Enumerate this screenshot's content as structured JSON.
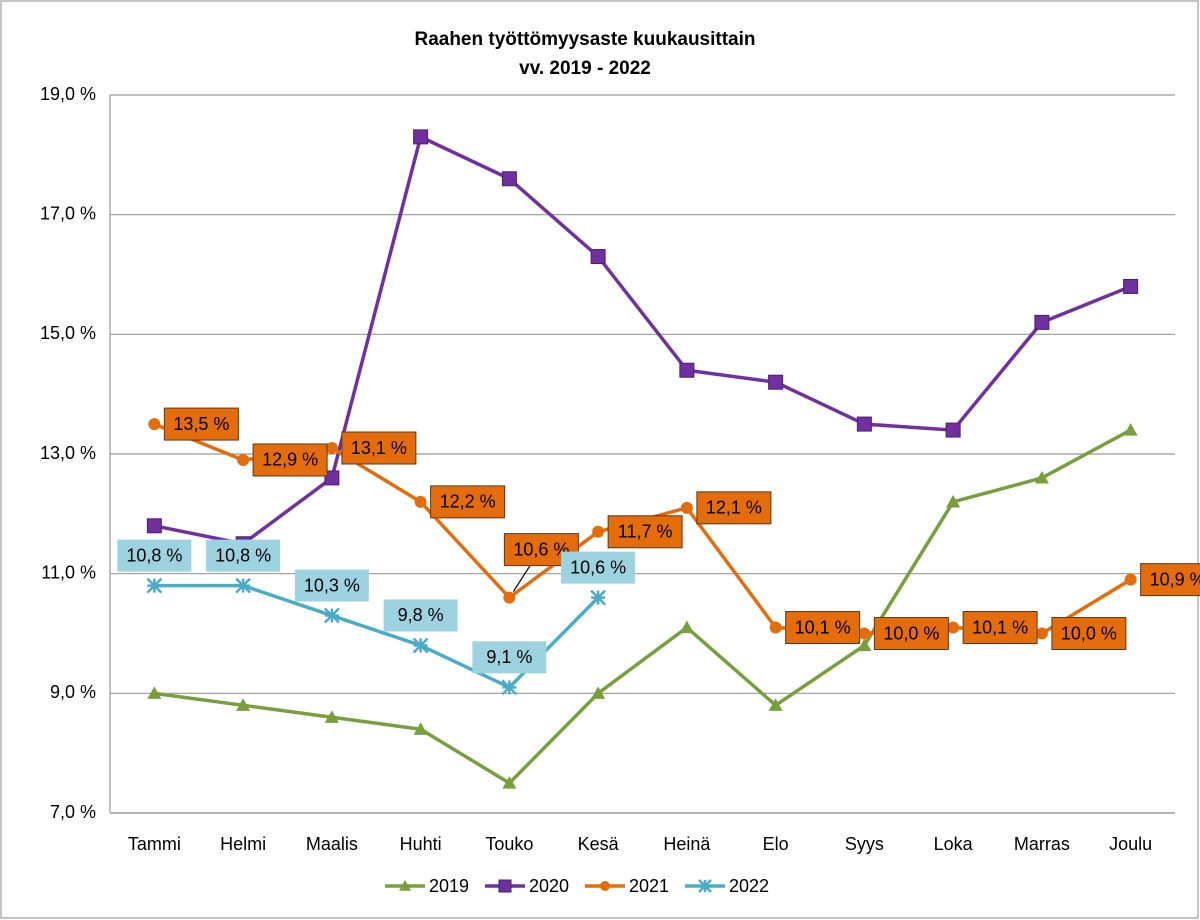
{
  "chart_data": {
    "type": "line",
    "title": "Raahen työttömyysaste kuukausittain",
    "subtitle": "vv. 2019 - 2022",
    "categories": [
      "Tammi",
      "Helmi",
      "Maalis",
      "Huhti",
      "Touko",
      "Kesä",
      "Heinä",
      "Elo",
      "Syys",
      "Loka",
      "Marras",
      "Joulu"
    ],
    "series": [
      {
        "name": "2019",
        "color": "#77a03c",
        "marker": "triangle",
        "values": [
          9.0,
          8.8,
          8.6,
          8.4,
          7.5,
          9.0,
          10.1,
          8.8,
          9.8,
          12.2,
          12.6,
          13.4
        ]
      },
      {
        "name": "2020",
        "color": "#7030a0",
        "marker": "square",
        "values": [
          11.8,
          11.5,
          12.6,
          18.3,
          17.6,
          16.3,
          14.4,
          14.2,
          13.5,
          13.4,
          15.2,
          15.8
        ]
      },
      {
        "name": "2021",
        "color": "#e46c0a",
        "marker": "circle",
        "label_fill": "#e46c0a",
        "values": [
          13.5,
          12.9,
          13.1,
          12.2,
          10.6,
          11.7,
          12.1,
          10.1,
          10.0,
          10.1,
          10.0,
          10.9
        ],
        "value_labels": [
          "13,5 %",
          "12,9 %",
          "13,1 %",
          "12,2 %",
          "10,6 %",
          "11,7 %",
          "12,1 %",
          "10,1 %",
          "10,0 %",
          "10,1 %",
          "10,0 %",
          "10,9 %"
        ]
      },
      {
        "name": "2022",
        "color": "#4bacc6",
        "marker": "asterisk",
        "label_fill": "#9dd3e0",
        "values": [
          10.8,
          10.8,
          10.3,
          9.8,
          9.1,
          10.6,
          null,
          null,
          null,
          null,
          null,
          null
        ],
        "value_labels": [
          "10,8 %",
          "10,8 %",
          "10,3 %",
          "9,8 %",
          "9,1 %",
          "10,6 %",
          null,
          null,
          null,
          null,
          null,
          null
        ]
      }
    ],
    "ylim": [
      7,
      19
    ],
    "yticks": [
      {
        "value": 7,
        "label": "7,0 %"
      },
      {
        "value": 9,
        "label": "9,0 %"
      },
      {
        "value": 11,
        "label": "11,0 %"
      },
      {
        "value": 13,
        "label": "13,0 %"
      },
      {
        "value": 15,
        "label": "15,0 %"
      },
      {
        "value": 17,
        "label": "17,0 %"
      },
      {
        "value": 19,
        "label": "19,0 %"
      }
    ],
    "grid": true,
    "legend": "bottom"
  }
}
